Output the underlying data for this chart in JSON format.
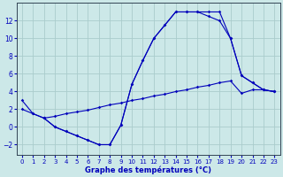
{
  "background_color": "#cce8e8",
  "grid_color": "#aacccc",
  "line_color": "#0000bb",
  "xlabel": "Graphe des températures (°C)",
  "xlim": [
    -0.5,
    23.5
  ],
  "ylim": [
    -3.2,
    14.0
  ],
  "yticks": [
    -2,
    0,
    2,
    4,
    6,
    8,
    10,
    12
  ],
  "xticks": [
    0,
    1,
    2,
    3,
    4,
    5,
    6,
    7,
    8,
    9,
    10,
    11,
    12,
    13,
    14,
    15,
    16,
    17,
    18,
    19,
    20,
    21,
    22,
    23
  ],
  "line1_x": [
    0,
    1,
    2,
    3,
    4,
    5,
    6,
    7,
    8,
    9,
    10,
    11,
    12,
    13,
    14,
    15,
    16,
    17,
    18,
    19,
    20,
    21,
    22,
    23
  ],
  "line1_y": [
    3.0,
    1.5,
    1.0,
    0.0,
    -0.5,
    -1.0,
    -1.5,
    -2.0,
    -2.0,
    0.2,
    4.8,
    7.5,
    10.0,
    11.5,
    13.0,
    13.0,
    13.0,
    13.0,
    13.0,
    10.0,
    5.8,
    5.0,
    4.2,
    4.0
  ],
  "line2_x": [
    0,
    1,
    2,
    3,
    4,
    5,
    6,
    7,
    8,
    9,
    10,
    11,
    12,
    13,
    14,
    15,
    16,
    17,
    18,
    19,
    20,
    21,
    22,
    23
  ],
  "line2_y": [
    2.0,
    1.5,
    1.0,
    1.2,
    1.5,
    1.7,
    1.9,
    2.2,
    2.5,
    2.7,
    3.0,
    3.2,
    3.5,
    3.7,
    4.0,
    4.2,
    4.5,
    4.7,
    5.0,
    5.2,
    3.8,
    4.2,
    4.2,
    4.0
  ],
  "line3_x": [
    2,
    3,
    4,
    5,
    6,
    7,
    8,
    9,
    10,
    11,
    12,
    13,
    14,
    15,
    16,
    17,
    18,
    19,
    20,
    21,
    22,
    23
  ],
  "line3_y": [
    1.0,
    0.0,
    -0.5,
    -1.0,
    -1.5,
    -2.0,
    -2.0,
    0.2,
    4.8,
    7.5,
    10.0,
    11.5,
    13.0,
    13.0,
    13.0,
    12.5,
    12.0,
    10.0,
    5.8,
    5.0,
    4.2,
    4.0
  ]
}
